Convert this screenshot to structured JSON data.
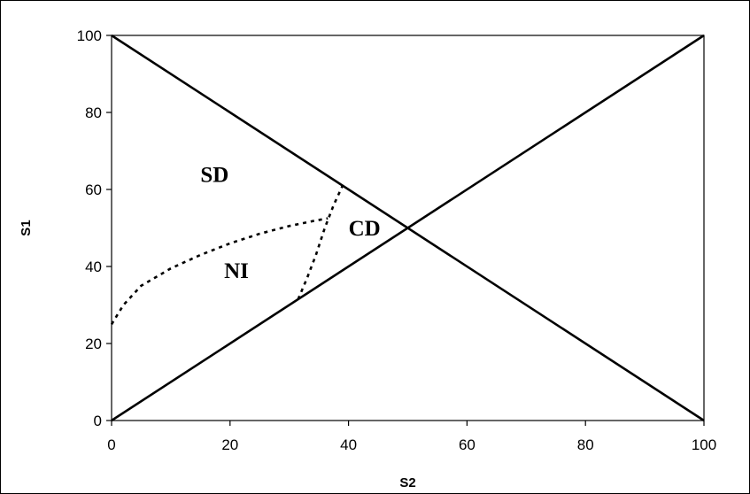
{
  "chart_data": {
    "type": "line",
    "title": "",
    "xlabel": "S2",
    "ylabel": "S1",
    "xlim": [
      0,
      100
    ],
    "ylim": [
      0,
      100
    ],
    "xticks": [
      "0",
      "20",
      "40",
      "60",
      "80",
      "100"
    ],
    "yticks": [
      "0",
      "20",
      "40",
      "60",
      "80",
      "100"
    ],
    "grid": false,
    "series": [
      {
        "style": "solid",
        "x": [
          0,
          100
        ],
        "y": [
          100,
          0
        ]
      },
      {
        "style": "solid",
        "x": [
          0,
          100
        ],
        "y": [
          0,
          100
        ]
      },
      {
        "style": "dotted",
        "x": [
          0,
          2,
          5,
          10,
          15,
          20,
          25,
          30,
          34,
          36.5
        ],
        "y": [
          25,
          30,
          35,
          39.5,
          43,
          46,
          48.5,
          50.5,
          51.8,
          52.5
        ]
      },
      {
        "style": "dotted",
        "x": [
          31.5,
          33,
          34.5,
          36,
          37.5,
          39
        ],
        "y": [
          31.5,
          37,
          43,
          50,
          56,
          61
        ]
      }
    ],
    "annotations": [
      {
        "text": "SD",
        "x": 15,
        "y": 62
      },
      {
        "text": "CD",
        "x": 40,
        "y": 48
      },
      {
        "text": "NI",
        "x": 19,
        "y": 37
      }
    ]
  }
}
